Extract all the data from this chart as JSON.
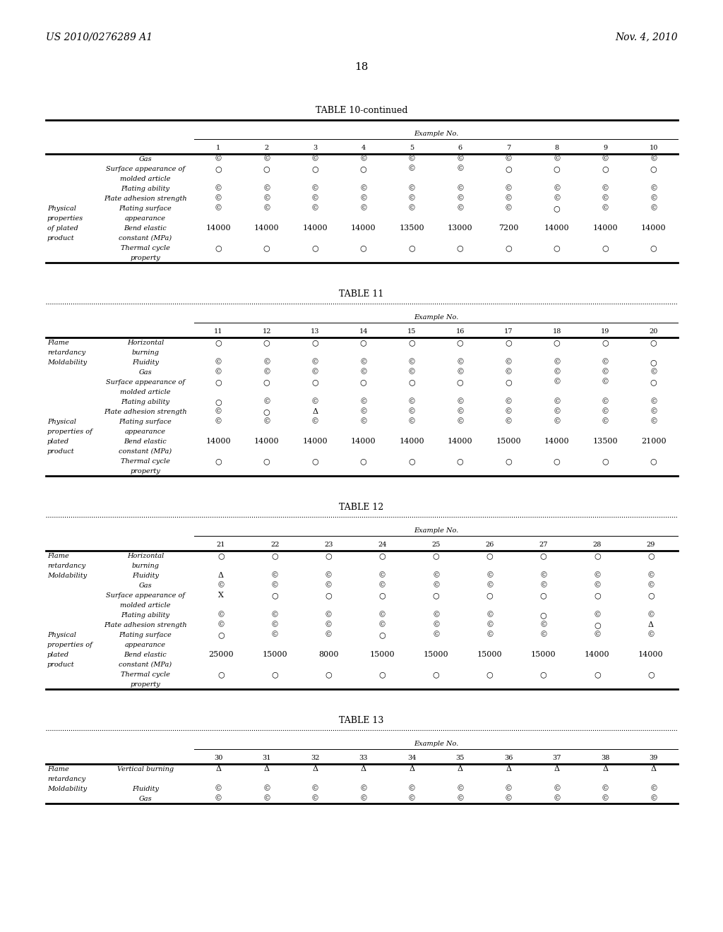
{
  "page_header_left": "US 2010/0276289 A1",
  "page_header_right": "Nov. 4, 2010",
  "page_number": "18",
  "background_color": "#ffffff",
  "table10_title": "TABLE 10-continued",
  "table10_col_headers": [
    "1",
    "2",
    "3",
    "4",
    "5",
    "6",
    "7",
    "8",
    "9",
    "10"
  ],
  "table10_rows": [
    {
      "label1": "",
      "label2": "Gas",
      "values": [
        "©",
        "©",
        "©",
        "©",
        "©",
        "©",
        "©",
        "©",
        "©",
        "©"
      ]
    },
    {
      "label1": "",
      "label2": "Surface appearance of",
      "values": [
        "○",
        "○",
        "○",
        "○",
        "©",
        "©",
        "○",
        "○",
        "○",
        "○"
      ]
    },
    {
      "label1": "",
      "label2": "molded article",
      "values": [
        "",
        "",
        "",
        "",
        "",
        "",
        "",
        "",
        "",
        ""
      ]
    },
    {
      "label1": "",
      "label2": "Plating ability",
      "values": [
        "©",
        "©",
        "©",
        "©",
        "©",
        "©",
        "©",
        "©",
        "©",
        "©"
      ]
    },
    {
      "label1": "",
      "label2": "Plate adhesion strength",
      "values": [
        "©",
        "©",
        "©",
        "©",
        "©",
        "©",
        "©",
        "©",
        "©",
        "©"
      ]
    },
    {
      "label1": "Physical",
      "label2": "Plating surface",
      "values": [
        "©",
        "©",
        "©",
        "©",
        "©",
        "©",
        "©",
        "○",
        "©",
        "©"
      ]
    },
    {
      "label1": "properties",
      "label2": "appearance",
      "values": [
        "",
        "",
        "",
        "",
        "",
        "",
        "",
        "",
        "",
        ""
      ]
    },
    {
      "label1": "of plated",
      "label2": "Bend elastic",
      "values": [
        "14000",
        "14000",
        "14000",
        "14000",
        "13500",
        "13000",
        "7200",
        "14000",
        "14000",
        "14000"
      ]
    },
    {
      "label1": "product",
      "label2": "constant (MPa)",
      "values": [
        "",
        "",
        "",
        "",
        "",
        "",
        "",
        "",
        "",
        ""
      ]
    },
    {
      "label1": "",
      "label2": "Thermal cycle",
      "values": [
        "○",
        "○",
        "○",
        "○",
        "○",
        "○",
        "○",
        "○",
        "○",
        "○"
      ]
    },
    {
      "label1": "",
      "label2": "property",
      "values": [
        "",
        "",
        "",
        "",
        "",
        "",
        "",
        "",
        "",
        ""
      ]
    }
  ],
  "table11_title": "TABLE 11",
  "table11_col_headers": [
    "11",
    "12",
    "13",
    "14",
    "15",
    "16",
    "17",
    "18",
    "19",
    "20"
  ],
  "table11_rows": [
    {
      "label1": "Flame",
      "label2": "Horizontal",
      "values": [
        "○",
        "○",
        "○",
        "○",
        "○",
        "○",
        "○",
        "○",
        "○",
        "○"
      ]
    },
    {
      "label1": "retardancy",
      "label2": "burning",
      "values": [
        "",
        "",
        "",
        "",
        "",
        "",
        "",
        "",
        "",
        ""
      ]
    },
    {
      "label1": "Moldability",
      "label2": "Fluidity",
      "values": [
        "©",
        "©",
        "©",
        "©",
        "©",
        "©",
        "©",
        "©",
        "©",
        "○"
      ]
    },
    {
      "label1": "",
      "label2": "Gas",
      "values": [
        "©",
        "©",
        "©",
        "©",
        "©",
        "©",
        "©",
        "©",
        "©",
        "©"
      ]
    },
    {
      "label1": "",
      "label2": "Surface appearance of",
      "values": [
        "○",
        "○",
        "○",
        "○",
        "○",
        "○",
        "○",
        "©",
        "©",
        "○"
      ]
    },
    {
      "label1": "",
      "label2": "molded article",
      "values": [
        "",
        "",
        "",
        "",
        "",
        "",
        "",
        "",
        "",
        ""
      ]
    },
    {
      "label1": "",
      "label2": "Plating ability",
      "values": [
        "○",
        "©",
        "©",
        "©",
        "©",
        "©",
        "©",
        "©",
        "©",
        "©"
      ]
    },
    {
      "label1": "",
      "label2": "Plate adhesion strength",
      "values": [
        "©",
        "○",
        "Δ",
        "©",
        "©",
        "©",
        "©",
        "©",
        "©",
        "©"
      ]
    },
    {
      "label1": "Physical",
      "label2": "Plating surface",
      "values": [
        "©",
        "©",
        "©",
        "©",
        "©",
        "©",
        "©",
        "©",
        "©",
        "©"
      ]
    },
    {
      "label1": "properties of",
      "label2": "appearance",
      "values": [
        "",
        "",
        "",
        "",
        "",
        "",
        "",
        "",
        "",
        ""
      ]
    },
    {
      "label1": "plated",
      "label2": "Bend elastic",
      "values": [
        "14000",
        "14000",
        "14000",
        "14000",
        "14000",
        "14000",
        "15000",
        "14000",
        "13500",
        "21000"
      ]
    },
    {
      "label1": "product",
      "label2": "constant (MPa)",
      "values": [
        "",
        "",
        "",
        "",
        "",
        "",
        "",
        "",
        "",
        ""
      ]
    },
    {
      "label1": "",
      "label2": "Thermal cycle",
      "values": [
        "○",
        "○",
        "○",
        "○",
        "○",
        "○",
        "○",
        "○",
        "○",
        "○"
      ]
    },
    {
      "label1": "",
      "label2": "property",
      "values": [
        "",
        "",
        "",
        "",
        "",
        "",
        "",
        "",
        "",
        ""
      ]
    }
  ],
  "table12_title": "TABLE 12",
  "table12_col_headers": [
    "21",
    "22",
    "23",
    "24",
    "25",
    "26",
    "27",
    "28",
    "29"
  ],
  "table12_rows": [
    {
      "label1": "Flame",
      "label2": "Horizontal",
      "values": [
        "○",
        "○",
        "○",
        "○",
        "○",
        "○",
        "○",
        "○",
        "○"
      ]
    },
    {
      "label1": "retardancy",
      "label2": "burning",
      "values": [
        "",
        "",
        "",
        "",
        "",
        "",
        "",
        "",
        ""
      ]
    },
    {
      "label1": "Moldability",
      "label2": "Fluidity",
      "values": [
        "Δ",
        "©",
        "©",
        "©",
        "©",
        "©",
        "©",
        "©",
        "©"
      ]
    },
    {
      "label1": "",
      "label2": "Gas",
      "values": [
        "©",
        "©",
        "©",
        "©",
        "©",
        "©",
        "©",
        "©",
        "©"
      ]
    },
    {
      "label1": "",
      "label2": "Surface appearance of",
      "values": [
        "X",
        "○",
        "○",
        "○",
        "○",
        "○",
        "○",
        "○",
        "○"
      ]
    },
    {
      "label1": "",
      "label2": "molded article",
      "values": [
        "",
        "",
        "",
        "",
        "",
        "",
        "",
        "",
        ""
      ]
    },
    {
      "label1": "",
      "label2": "Plating ability",
      "values": [
        "©",
        "©",
        "©",
        "©",
        "©",
        "©",
        "○",
        "©",
        "©"
      ]
    },
    {
      "label1": "",
      "label2": "Plate adhesion strength",
      "values": [
        "©",
        "©",
        "©",
        "©",
        "©",
        "©",
        "©",
        "○",
        "Δ"
      ]
    },
    {
      "label1": "Physical",
      "label2": "Plating surface",
      "values": [
        "○",
        "©",
        "©",
        "○",
        "©",
        "©",
        "©",
        "©",
        "©"
      ]
    },
    {
      "label1": "properties of",
      "label2": "appearance",
      "values": [
        "",
        "",
        "",
        "",
        "",
        "",
        "",
        "",
        ""
      ]
    },
    {
      "label1": "plated",
      "label2": "Bend elastic",
      "values": [
        "25000",
        "15000",
        "8000",
        "15000",
        "15000",
        "15000",
        "15000",
        "14000",
        "14000"
      ]
    },
    {
      "label1": "product",
      "label2": "constant (MPa)",
      "values": [
        "",
        "",
        "",
        "",
        "",
        "",
        "",
        "",
        ""
      ]
    },
    {
      "label1": "",
      "label2": "Thermal cycle",
      "values": [
        "○",
        "○",
        "○",
        "○",
        "○",
        "○",
        "○",
        "○",
        "○"
      ]
    },
    {
      "label1": "",
      "label2": "property",
      "values": [
        "",
        "",
        "",
        "",
        "",
        "",
        "",
        "",
        ""
      ]
    }
  ],
  "table13_title": "TABLE 13",
  "table13_col_headers": [
    "30",
    "31",
    "32",
    "33",
    "34",
    "35",
    "36",
    "37",
    "38",
    "39"
  ],
  "table13_rows": [
    {
      "label1": "Flame",
      "label2": "Vertical burning",
      "values": [
        "Δ",
        "Δ",
        "Δ",
        "Δ",
        "Δ",
        "Δ",
        "Δ",
        "Δ",
        "Δ",
        "Δ"
      ]
    },
    {
      "label1": "retardancy",
      "label2": "",
      "values": [
        "",
        "",
        "",
        "",
        "",
        "",
        "",
        "",
        "",
        ""
      ]
    },
    {
      "label1": "Moldability",
      "label2": "Fluidity",
      "values": [
        "©",
        "©",
        "©",
        "©",
        "©",
        "©",
        "©",
        "©",
        "©",
        "©"
      ]
    },
    {
      "label1": "",
      "label2": "Gas",
      "values": [
        "©",
        "©",
        "©",
        "©",
        "©",
        "©",
        "©",
        "©",
        "©",
        "©"
      ]
    }
  ]
}
